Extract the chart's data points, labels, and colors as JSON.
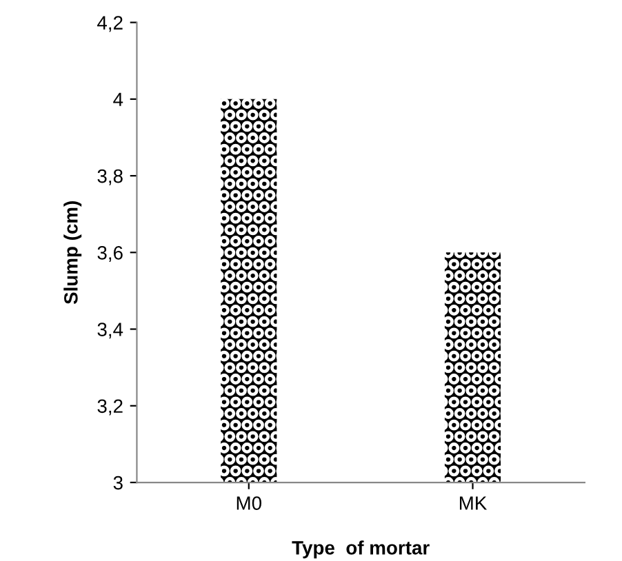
{
  "chart_data": {
    "type": "bar",
    "xlabel": "Type  of mortar",
    "ylabel": "Slump (cm)",
    "categories": [
      "M0",
      "MK"
    ],
    "values": [
      4.0,
      3.6
    ],
    "color": "#000000",
    "ylim": [
      3,
      4.2
    ],
    "yticks": [
      3,
      {
        "value": 3.2,
        "label": "3,2"
      },
      {
        "value": 3.4,
        "label": "3,4"
      },
      {
        "value": 3.6,
        "label": "3,6"
      },
      {
        "value": 3.8,
        "label": "3,8"
      },
      4,
      {
        "value": 4.2,
        "label": "4,2"
      }
    ],
    "grid": false,
    "legend": false
  }
}
